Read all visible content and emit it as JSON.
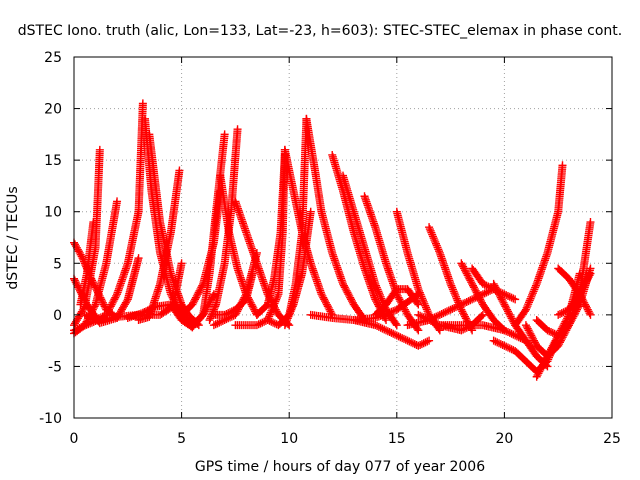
{
  "chart_data": {
    "type": "scatter",
    "title": "dSTEC Iono. truth (alic, Lon=133, Lat=-23, h=603): STEC-STEC_elemax in phase cont.",
    "xlabel": "GPS time / hours of day 077 of year 2006",
    "ylabel": "dSTEC  / TECUs",
    "xlim": [
      0,
      25
    ],
    "ylim": [
      -10,
      25
    ],
    "xticks": [
      0,
      5,
      10,
      15,
      20,
      25
    ],
    "yticks": [
      -10,
      -5,
      0,
      5,
      10,
      15,
      20,
      25
    ],
    "grid": true,
    "marker": "plus",
    "color": "#ff0000",
    "series": [
      {
        "x": [
          0.0,
          0.5,
          1.0,
          1.2
        ],
        "y": [
          -1.0,
          0.8,
          6.5,
          16.0
        ]
      },
      {
        "x": [
          0.0,
          0.4,
          0.8,
          1.5,
          2.0
        ],
        "y": [
          7.0,
          5.5,
          3.5,
          0.5,
          -0.3
        ]
      },
      {
        "x": [
          0.0,
          1.0,
          2.0,
          3.0,
          4.0,
          4.6,
          5.0
        ],
        "y": [
          -1.5,
          -0.6,
          -0.2,
          0.0,
          0.0,
          0.8,
          5.0
        ]
      },
      {
        "x": [
          0.0,
          0.6,
          1.2,
          2.0,
          2.5,
          3.0
        ],
        "y": [
          3.5,
          1.0,
          -0.8,
          -0.3,
          1.5,
          5.5
        ]
      },
      {
        "x": [
          0.0,
          0.5,
          1.0,
          1.5,
          2.0
        ],
        "y": [
          -1.8,
          -1.0,
          1.0,
          5.0,
          11.0
        ]
      },
      {
        "x": [
          0.5,
          1.0,
          1.5,
          2.0,
          2.5,
          3.0,
          3.2
        ],
        "y": [
          0.0,
          -0.5,
          0.0,
          2.0,
          5.0,
          10.0,
          20.5
        ]
      },
      {
        "x": [
          0.3,
          0.6,
          0.9
        ],
        "y": [
          1.0,
          4.0,
          9.0
        ]
      },
      {
        "x": [
          3.3,
          3.6,
          4.0,
          4.5,
          5.0,
          5.5
        ],
        "y": [
          19.0,
          12.0,
          6.0,
          2.0,
          0.0,
          -1.2
        ]
      },
      {
        "x": [
          3.5,
          4.0,
          4.5,
          5.0,
          5.3,
          5.8
        ],
        "y": [
          17.5,
          9.0,
          4.0,
          1.0,
          0.0,
          -1.0
        ]
      },
      {
        "x": [
          2.5,
          3.2,
          3.8,
          4.5,
          5.0
        ],
        "y": [
          -0.3,
          0.2,
          0.8,
          1.0,
          0.5
        ]
      },
      {
        "x": [
          3.0,
          3.5,
          4.0,
          4.5,
          4.9
        ],
        "y": [
          -0.5,
          -0.2,
          3.0,
          8.0,
          14.0
        ]
      },
      {
        "x": [
          5.0,
          5.5,
          6.0,
          6.5,
          6.8
        ],
        "y": [
          0.0,
          1.0,
          3.0,
          7.0,
          12.0
        ]
      },
      {
        "x": [
          4.5,
          5.0,
          5.5,
          6.0,
          6.5
        ],
        "y": [
          1.0,
          -0.5,
          -1.2,
          0.0,
          2.0
        ]
      },
      {
        "x": [
          5.5,
          6.0,
          6.3,
          6.6,
          7.0
        ],
        "y": [
          -1.0,
          0.0,
          4.0,
          10.0,
          17.5
        ]
      },
      {
        "x": [
          6.3,
          6.6,
          7.0,
          7.3,
          7.6
        ],
        "y": [
          -0.5,
          1.0,
          5.0,
          10.0,
          18.0
        ]
      },
      {
        "x": [
          6.8,
          7.2,
          7.6,
          8.0,
          8.5
        ],
        "y": [
          13.5,
          8.0,
          4.5,
          2.0,
          0.0
        ]
      },
      {
        "x": [
          6.5,
          7.0,
          7.5,
          8.0,
          8.3
        ],
        "y": [
          0.0,
          0.0,
          0.5,
          1.5,
          4.0
        ]
      },
      {
        "x": [
          7.5,
          8.0,
          8.5,
          9.0,
          9.5,
          10.0
        ],
        "y": [
          11.0,
          8.0,
          5.0,
          2.0,
          0.0,
          -1.0
        ]
      },
      {
        "x": [
          6.5,
          7.0,
          7.5,
          8.0,
          8.5
        ],
        "y": [
          -1.0,
          -0.5,
          0.0,
          2.0,
          6.0
        ]
      },
      {
        "x": [
          7.5,
          8.5,
          9.0,
          9.5,
          9.7,
          9.8
        ],
        "y": [
          -1.0,
          -1.0,
          -0.5,
          2.0,
          8.0,
          16.0
        ]
      },
      {
        "x": [
          8.5,
          9.0,
          9.3,
          9.6,
          9.8
        ],
        "y": [
          0.0,
          1.0,
          3.5,
          8.0,
          15.5
        ]
      },
      {
        "x": [
          9.8,
          10.2,
          10.6,
          11.0,
          11.5,
          12.0
        ],
        "y": [
          16.0,
          12.0,
          8.0,
          5.0,
          2.0,
          0.0
        ]
      },
      {
        "x": [
          9.0,
          9.5,
          10.0,
          10.3,
          10.6,
          10.8
        ],
        "y": [
          -0.5,
          -1.0,
          0.0,
          3.0,
          8.0,
          19.0
        ]
      },
      {
        "x": [
          9.8,
          10.2,
          10.6,
          11.0
        ],
        "y": [
          -1.0,
          1.0,
          4.0,
          10.0
        ]
      },
      {
        "x": [
          10.8,
          11.2,
          11.5,
          12.0,
          12.5,
          13.0,
          13.5
        ],
        "y": [
          19.0,
          14.0,
          10.0,
          6.0,
          3.0,
          1.0,
          -0.5
        ]
      },
      {
        "x": [
          12.0,
          12.5,
          13.0,
          13.5,
          14.0,
          14.5
        ],
        "y": [
          15.5,
          12.0,
          8.0,
          4.5,
          1.5,
          -0.5
        ]
      },
      {
        "x": [
          12.5,
          13.0,
          13.5,
          14.0,
          14.5,
          15.0
        ],
        "y": [
          13.5,
          10.0,
          6.5,
          3.0,
          0.5,
          -1.0
        ]
      },
      {
        "x": [
          11.0,
          12.0,
          13.0,
          14.0,
          15.0,
          16.0
        ],
        "y": [
          0.0,
          -0.3,
          -0.5,
          -0.3,
          0.5,
          2.0
        ]
      },
      {
        "x": [
          13.5,
          14.0,
          14.5,
          15.0,
          15.5,
          16.0
        ],
        "y": [
          11.5,
          8.5,
          5.0,
          2.0,
          0.0,
          -1.5
        ]
      },
      {
        "x": [
          15.0,
          15.5,
          16.0,
          16.5,
          17.0
        ],
        "y": [
          10.0,
          6.0,
          2.5,
          0.0,
          -1.5
        ]
      },
      {
        "x": [
          13.0,
          14.0,
          15.0,
          16.0,
          16.5
        ],
        "y": [
          -0.5,
          -1.0,
          -2.0,
          -3.0,
          -2.5
        ]
      },
      {
        "x": [
          16.5,
          17.0,
          17.5,
          18.0,
          18.5
        ],
        "y": [
          8.5,
          6.0,
          3.0,
          0.5,
          -1.5
        ]
      },
      {
        "x": [
          14.0,
          14.5,
          15.0,
          15.5,
          16.0
        ],
        "y": [
          0.0,
          1.0,
          2.5,
          2.5,
          1.0
        ]
      },
      {
        "x": [
          15.5,
          16.5,
          17.5,
          18.5,
          19.5
        ],
        "y": [
          -1.0,
          -0.5,
          0.5,
          1.5,
          2.5
        ]
      },
      {
        "x": [
          16.0,
          17.0,
          18.0,
          18.5,
          19.0
        ],
        "y": [
          0.0,
          -1.0,
          -1.5,
          -1.0,
          0.0
        ]
      },
      {
        "x": [
          18.0,
          18.5,
          19.0,
          19.5,
          20.0
        ],
        "y": [
          5.0,
          3.0,
          1.0,
          -0.5,
          -1.5
        ]
      },
      {
        "x": [
          17.0,
          18.0,
          19.0,
          20.0,
          21.0
        ],
        "y": [
          -1.0,
          -1.0,
          -1.0,
          -1.5,
          -2.5
        ]
      },
      {
        "x": [
          18.5,
          19.0,
          19.5,
          20.0,
          20.5
        ],
        "y": [
          4.5,
          3.0,
          2.5,
          2.0,
          1.5
        ]
      },
      {
        "x": [
          19.5,
          20.0,
          20.5,
          21.0,
          21.5,
          22.0
        ],
        "y": [
          3.0,
          1.0,
          -1.0,
          -2.5,
          -4.0,
          -5.0
        ]
      },
      {
        "x": [
          19.5,
          20.5,
          21.0,
          21.5,
          22.0,
          22.5
        ],
        "y": [
          -2.5,
          -3.5,
          -4.5,
          -5.5,
          -4.5,
          -2.0
        ]
      },
      {
        "x": [
          20.5,
          21.0,
          21.5,
          22.0,
          22.5,
          22.7
        ],
        "y": [
          -1.0,
          0.5,
          3.0,
          6.0,
          10.0,
          14.5
        ]
      },
      {
        "x": [
          21.5,
          22.0,
          22.5,
          23.0,
          23.5
        ],
        "y": [
          -6.0,
          -4.0,
          -2.0,
          0.0,
          4.0
        ]
      },
      {
        "x": [
          21.0,
          21.5,
          22.0,
          22.5,
          23.0,
          23.5,
          24.0
        ],
        "y": [
          -1.0,
          -3.0,
          -4.0,
          -3.0,
          -1.0,
          2.0,
          9.0
        ]
      },
      {
        "x": [
          21.5,
          22.0,
          22.5,
          23.0,
          23.5,
          24.0
        ],
        "y": [
          -0.5,
          -1.5,
          -2.0,
          -1.0,
          1.0,
          4.5
        ]
      },
      {
        "x": [
          22.5,
          23.0,
          23.5,
          24.0
        ],
        "y": [
          4.5,
          3.5,
          2.0,
          0.0
        ]
      },
      {
        "x": [
          22.5,
          23.0,
          23.5,
          24.0
        ],
        "y": [
          0.0,
          0.5,
          2.0,
          4.0
        ]
      }
    ]
  }
}
